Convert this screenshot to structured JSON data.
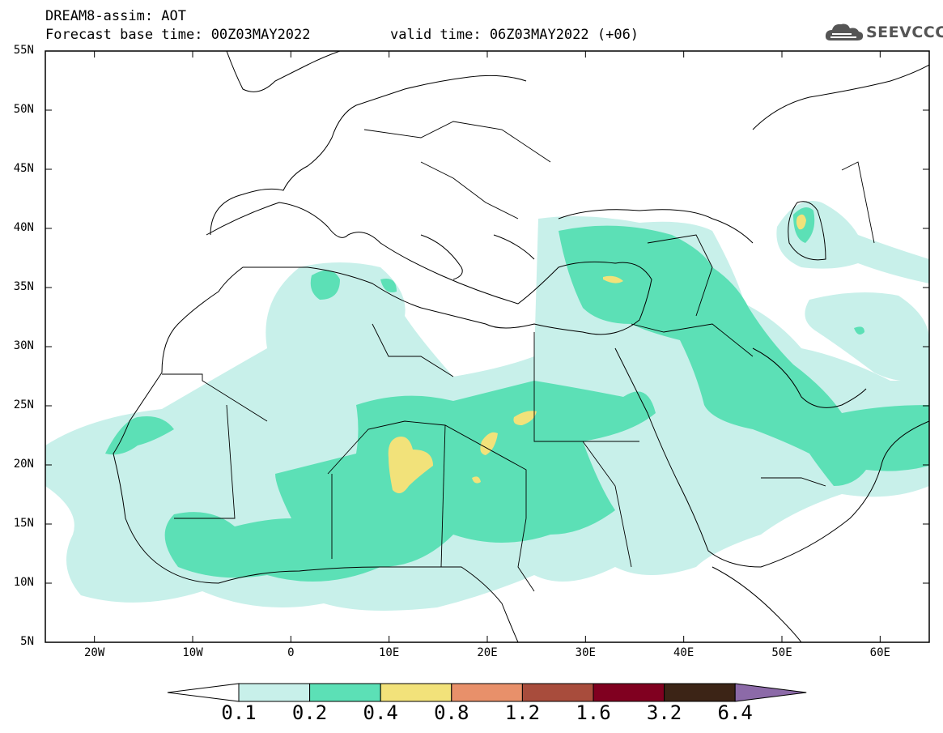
{
  "header": {
    "line1": "DREAM8-assim: AOT",
    "base": "Forecast base time: 00Z03MAY2022",
    "valid": "valid time: 06Z03MAY2022 (+06)"
  },
  "logo": {
    "text": "SEEVCCC",
    "icon": "cloud-icon"
  },
  "axes": {
    "lat_labels": [
      "55N",
      "50N",
      "45N",
      "40N",
      "35N",
      "30N",
      "25N",
      "20N",
      "15N",
      "10N",
      "5N"
    ],
    "lon_labels": [
      "20W",
      "10W",
      "0",
      "10E",
      "20E",
      "30E",
      "40E",
      "50E",
      "60E"
    ],
    "lat_range": [
      5,
      55
    ],
    "lon_range": [
      -25,
      65
    ]
  },
  "legend": {
    "levels": [
      "0.1",
      "0.2",
      "0.4",
      "0.8",
      "1.2",
      "1.6",
      "3.2",
      "6.4"
    ],
    "colors": [
      "#ffffff",
      "#c8f0ea",
      "#5ce0b6",
      "#f2e27a",
      "#e8906a",
      "#a84c3c",
      "#800020",
      "#3c2416",
      "#8c6aa8"
    ]
  }
}
